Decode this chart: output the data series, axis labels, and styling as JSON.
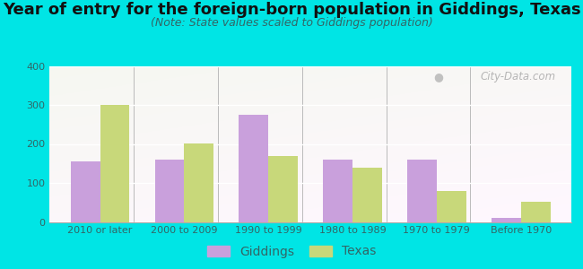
{
  "title": "Year of entry for the foreign-born population in Giddings, Texas",
  "subtitle": "(Note: State values scaled to Giddings population)",
  "categories": [
    "2010 or later",
    "2000 to 2009",
    "1990 to 1999",
    "1980 to 1989",
    "1970 to 1979",
    "Before 1970"
  ],
  "giddings_values": [
    155,
    160,
    275,
    160,
    160,
    10
  ],
  "texas_values": [
    300,
    202,
    168,
    138,
    80,
    52
  ],
  "giddings_color": "#c9a0dc",
  "texas_color": "#c8d87a",
  "background_outer": "#00e5e5",
  "ylim": [
    0,
    400
  ],
  "yticks": [
    0,
    100,
    200,
    300,
    400
  ],
  "bar_width": 0.35,
  "title_fontsize": 13,
  "subtitle_fontsize": 9,
  "legend_fontsize": 10,
  "tick_fontsize": 8,
  "watermark_text": "City-Data.com"
}
